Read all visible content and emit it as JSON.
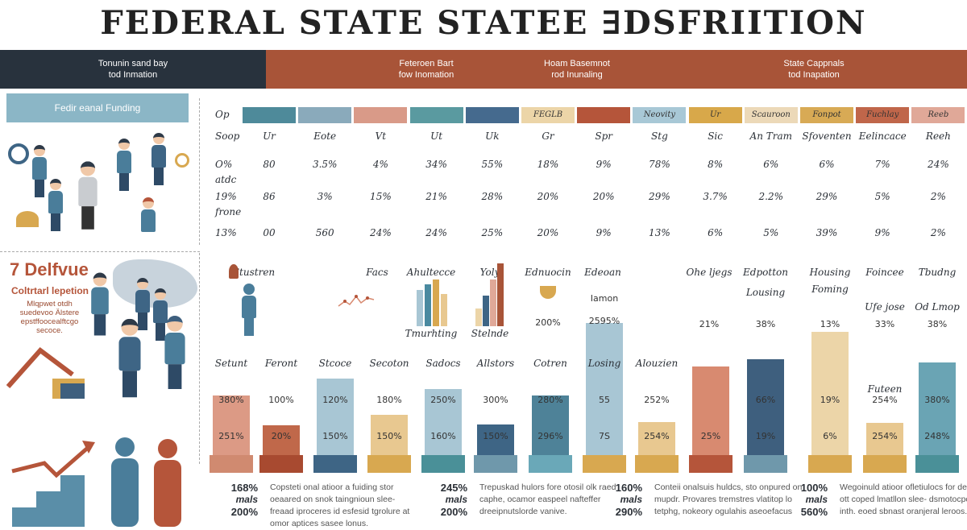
{
  "title": "FEDERAL STATE  STATEE ∃DSFRIITION",
  "band": {
    "left": [
      "Tonunin sand bay",
      "tod Inmation"
    ],
    "items": [
      [
        "Feteroen Bart",
        "fow Inomation"
      ],
      [
        "Hoam Basemnot",
        "rod Inunaling"
      ],
      [
        "State Cappnals",
        "tod Inapation"
      ]
    ]
  },
  "left_panel": {
    "funding_box": "Fedir eanal Funding",
    "heading": "7 Delfvue",
    "subheading": "Coltrtarl lepetion",
    "paragraph": [
      "Mlqpwet otdh",
      "suedevoo Älstere",
      "epstffoocealftcgo",
      "secoce."
    ]
  },
  "table": {
    "corner": "Op",
    "swatches": [
      {
        "color": "#4e8a9a",
        "text": ""
      },
      {
        "color": "#8aaabb",
        "text": ""
      },
      {
        "color": "#d99a88",
        "text": ""
      },
      {
        "color": "#5a9aa0",
        "text": ""
      },
      {
        "color": "#456a8e",
        "text": ""
      },
      {
        "color": "#ecd5a8",
        "text": "FEGLB"
      },
      {
        "color": "#b5553a",
        "text": ""
      },
      {
        "color": "#a8c8d6",
        "text": "Neovity"
      },
      {
        "color": "#d8a84a",
        "text": "Ur"
      },
      {
        "color": "#ecd9b8",
        "text": "Scauroon"
      },
      {
        "color": "#d8aa55",
        "text": "Fonpot"
      },
      {
        "color": "#c0664a",
        "text": "Fuchlay"
      },
      {
        "color": "#e0a898",
        "text": "Reeb"
      }
    ],
    "rows": [
      {
        "label": "Soop",
        "sub": "",
        "cells": [
          "Ur",
          "Eote",
          "Vt",
          "Ut",
          "Uk",
          "Gr",
          "Spr",
          "Stg",
          "Sic",
          "An Tram",
          "Sfoventen",
          "Eelincace",
          "Reeh"
        ]
      },
      {
        "label": "O%",
        "sub": "atdc",
        "cells": [
          "80",
          "3.5%",
          "4%",
          "34%",
          "55%",
          "18%",
          "9%",
          "78%",
          "8%",
          "6%",
          "6%",
          "7%",
          "24%"
        ]
      },
      {
        "label": "19%",
        "sub": "frone",
        "cells": [
          "86",
          "3%",
          "15%",
          "21%",
          "28%",
          "20%",
          "20%",
          "29%",
          "3.7%",
          "2.2%",
          "29%",
          "5%",
          "2%"
        ]
      },
      {
        "label": "13%",
        "sub": "",
        "cells": [
          "00",
          "560",
          "24%",
          "24%",
          "25%",
          "20%",
          "9%",
          "13%",
          "6%",
          "5%",
          "39%",
          "9%",
          "2%"
        ]
      }
    ]
  },
  "top_annotations": [
    {
      "text": "Stustren"
    },
    {
      "text": "Facs"
    },
    {
      "text": "Ahultecce",
      "under": "Tmurhting"
    },
    {
      "text": "Yoly",
      "under": "Stelnde"
    },
    {
      "text": "Ednuocin",
      "value": "200%"
    },
    {
      "text": "Edeoan"
    },
    {
      "text": "Ohe ljegs",
      "value": "21%"
    },
    {
      "text": "Edpotton",
      "text2": "Lousing",
      "value": "38%"
    },
    {
      "text": "Housing",
      "text2": "Foming",
      "value": "13%"
    },
    {
      "text": "Foincee",
      "text2": "Ufe jose",
      "value": "33%"
    },
    {
      "text": "Tbudng",
      "text2": "Od Lmop",
      "value": "38%"
    }
  ],
  "chart_data": {
    "type": "bar",
    "bars": [
      {
        "label": "Setunt",
        "level": 0.8,
        "color": "#dc9a85",
        "base": "#d08a70",
        "v1": "380%",
        "v2": "251%"
      },
      {
        "label": "Feront",
        "level": 0.4,
        "color": "#c0684a",
        "base": "#a84a30",
        "v1": "100%",
        "v2": "20%"
      },
      {
        "label": "Stcoce",
        "level": 1.03,
        "color": "#a8c6d4",
        "base": "#3e6585",
        "v1": "120%",
        "v2": "150%"
      },
      {
        "label": "Secoton",
        "level": 0.54,
        "color": "#e8c890",
        "base": "#d8a850",
        "v1": "180%",
        "v2": "150%"
      },
      {
        "label": "Sadocs",
        "level": 0.89,
        "color": "#a8c6d4",
        "base": "#4a9098",
        "v1": "250%",
        "v2": "160%"
      },
      {
        "label": "Allstors",
        "level": 0.41,
        "color": "#3e6585",
        "base": "#6f98ab",
        "v1": "300%",
        "v2": "150%"
      },
      {
        "label": "Cotren",
        "level": 0.8,
        "color": "#4e8298",
        "base": "#6aa8b8",
        "v1": "280%",
        "v2": "296%"
      },
      {
        "label": "Losing",
        "level": 1.78,
        "color": "#a8c6d4",
        "base": "#d8a850",
        "v1": "55",
        "v2": "7S",
        "top1": "Iamon",
        "top2": "2595%"
      },
      {
        "label": "Alouzien",
        "level": 0.45,
        "color": "#e8c890",
        "base": "#d8a850",
        "v1": "252%",
        "v2": "254%"
      },
      {
        "label": "",
        "level": 1.2,
        "color": "#d88a70",
        "base": "#b5553a",
        "v1": "",
        "v2": "25%"
      },
      {
        "label": "",
        "level": 1.29,
        "color": "#3e5f7e",
        "base": "#6f98ab",
        "v1": "66%",
        "v2": "19%"
      },
      {
        "label": "",
        "level": 1.66,
        "color": "#ecd5a8",
        "base": "#d8a850",
        "v1": "19%",
        "v2": "6%"
      },
      {
        "label": "Futeen",
        "level": 0.44,
        "color": "#e8c890",
        "base": "#d8a850",
        "v1": "254%",
        "v2": "254%"
      },
      {
        "label": "",
        "level": 1.25,
        "color": "#6aa4b4",
        "base": "#4a9098",
        "v1": "380%",
        "v2": "248%"
      }
    ]
  },
  "bottom_blocks": [
    {
      "n1": "168%",
      "unit": "mals",
      "n2": "200%",
      "text": "Copsteti onal atioor a fuiding stor oeaared on snok taingnioun slee- freaad iproceres id esfesid tgrolure at omor aptices sasee lonus."
    },
    {
      "n1": "245%",
      "unit": "mals",
      "n2": "200%",
      "text": "Trepuskad hulors fore otosil olk raed caphe, ocamor easpeel nafteffer dreeipnutslorde vanive."
    },
    {
      "n1": "160%",
      "unit": "mals",
      "n2": "290%",
      "text": "Conteii onalsuis huldcs, sto onpured on mupdr. Provares tremstres vlatitop lo tetphg, nokeory ogulahis aseoefacus"
    },
    {
      "n1": "100%",
      "unit": "mals",
      "n2": "560%",
      "text": "Wegoinuld atioor ofletiulocs for deaured ott coped lmatllon slee- dsmotocpomer inth. eoed sbnast oranjeral leroos."
    }
  ]
}
